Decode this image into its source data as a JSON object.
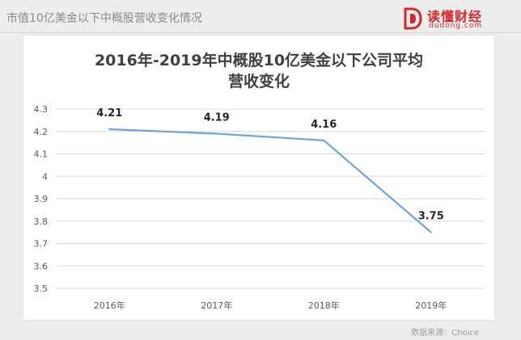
{
  "header": {
    "title": "市值10亿美金以下中概股营收变化情况"
  },
  "logo": {
    "name": "读懂财经",
    "domain": "dudong.com",
    "brand_color": "#d7262a"
  },
  "source_note": "数据来源：Choice",
  "chart_data": {
    "type": "line",
    "title_line1": "2016年-2019年中概股10亿美金以下公司平均",
    "title_line2": "营收变化",
    "categories": [
      "2016年",
      "2017年",
      "2018年",
      "2019年"
    ],
    "series": [
      {
        "values": [
          4.21,
          4.19,
          4.16,
          3.75
        ],
        "color": "#6fa3db"
      }
    ],
    "data_labels": [
      "4.21",
      "4.19",
      "4.16",
      "3.75"
    ],
    "ylim": [
      3.5,
      4.3
    ],
    "yticks": [
      "3.5",
      "3.6",
      "3.7",
      "3.8",
      "3.9",
      "4",
      "4.1",
      "4.2",
      "4.3"
    ],
    "grid": true,
    "xlabel": "",
    "ylabel": ""
  }
}
